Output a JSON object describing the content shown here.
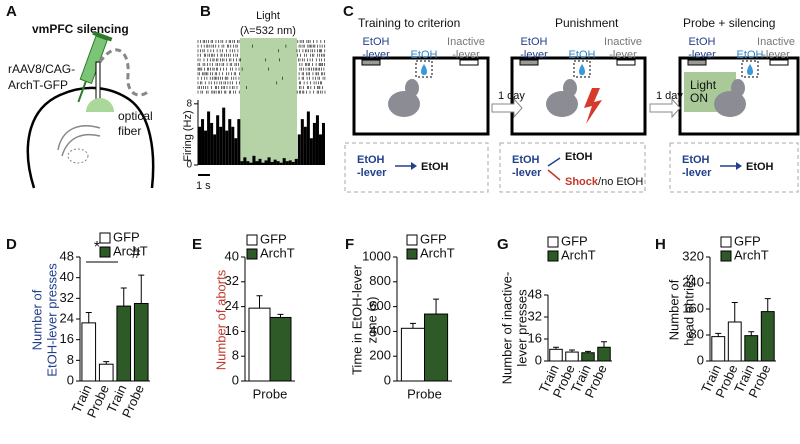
{
  "panel_a": {
    "label": "A",
    "title": "vmPFC silencing",
    "virus": [
      "rAAV8/CAG-",
      "ArchT-GFP"
    ],
    "fiber": [
      "optical",
      "fiber"
    ]
  },
  "panel_c": {
    "label": "C",
    "stages": [
      {
        "title": "Training to criterion",
        "active": [
          "EtOH",
          "-lever"
        ],
        "reward": "EtOH",
        "inactive": [
          "Inactive",
          "-lever"
        ],
        "outcome": {
          "lever": [
            "EtOH",
            "-lever"
          ],
          "result": [
            "EtOH"
          ]
        }
      },
      {
        "title": "Punishment",
        "active": [
          "EtOH",
          "-lever"
        ],
        "reward": "EtOH",
        "inactive": [
          "Inactive",
          "-lever"
        ],
        "outcome": {
          "lever": [
            "EtOH",
            "-lever"
          ],
          "result": [
            "EtOH",
            "Shock",
            "/no EtOH"
          ]
        }
      },
      {
        "title": "Probe + silencing",
        "active": [
          "EtOH",
          "-lever"
        ],
        "reward": "EtOH",
        "inactive": [
          "Inactive",
          "-lever"
        ],
        "outcome": {
          "lever": [
            "EtOH",
            "-lever"
          ],
          "result": [
            "EtOH"
          ]
        }
      }
    ],
    "transitions": [
      "1 day",
      "1 day"
    ],
    "light": [
      "Light",
      "ON"
    ]
  },
  "chart_data": [
    {
      "type": "bar",
      "panel_label": "B",
      "light_label": [
        "Light",
        "(λ=532 nm)"
      ],
      "ylabel": [
        "Firing (Hz)"
      ],
      "scale_bar": "1 s",
      "values": [
        5,
        6,
        4.5,
        7,
        5.5,
        4,
        6.5,
        5,
        7.5,
        4.5,
        6,
        5,
        3.5,
        6,
        0.5,
        1,
        0.5,
        0.3,
        1.2,
        0.5,
        0.8,
        0.3,
        0.6,
        1,
        0.4,
        0.7,
        0.5,
        0.3,
        0.9,
        0.5,
        0.6,
        0.4,
        0.8,
        4,
        6,
        5,
        7,
        3.5,
        5.5,
        6.5,
        4,
        5.5
      ],
      "color": "#000000",
      "ylim": [
        0,
        8.5
      ],
      "yticks": [
        0,
        8
      ]
    },
    {
      "type": "bar",
      "panel_label": "D",
      "ylabel": [
        "Number of",
        "EtOH-lever presses"
      ],
      "ylabel_color": "#23408e",
      "categories": [
        "Train",
        "Probe",
        "Train",
        "Probe"
      ],
      "series": [
        {
          "name": "GFP",
          "color": "#ffffff",
          "values": [
            22.5,
            6.5,
            null,
            null
          ],
          "errors": [
            4,
            1,
            null,
            null
          ]
        },
        {
          "name": "ArchT",
          "color": "#2d5a27",
          "values": [
            null,
            null,
            29,
            30
          ],
          "errors": [
            null,
            null,
            7,
            11
          ]
        }
      ],
      "ylim": [
        0,
        48
      ],
      "yticks": [
        0,
        8,
        16,
        24,
        32,
        40,
        48
      ],
      "annotations": [
        "*",
        "#"
      ]
    },
    {
      "type": "bar",
      "panel_label": "E",
      "ylabel": [
        "Number of aborts"
      ],
      "ylabel_color": "#c0392b",
      "categories": [
        "Probe"
      ],
      "series": [
        {
          "name": "GFP",
          "color": "#ffffff",
          "values": [
            23.5
          ],
          "errors": [
            4
          ]
        },
        {
          "name": "ArchT",
          "color": "#2d5a27",
          "values": [
            20.5
          ],
          "errors": [
            1
          ]
        }
      ],
      "ylim": [
        0,
        40
      ],
      "yticks": [
        0,
        8,
        16,
        24,
        32,
        40
      ]
    },
    {
      "type": "bar",
      "panel_label": "F",
      "ylabel": [
        "Time in EtOH-lever",
        "zone (s)"
      ],
      "categories": [
        "Probe"
      ],
      "series": [
        {
          "name": "GFP",
          "color": "#ffffff",
          "values": [
            425
          ],
          "errors": [
            40
          ]
        },
        {
          "name": "ArchT",
          "color": "#2d5a27",
          "values": [
            540
          ],
          "errors": [
            120
          ]
        }
      ],
      "ylim": [
        0,
        1000
      ],
      "yticks": [
        0,
        200,
        400,
        600,
        800,
        1000
      ]
    },
    {
      "type": "bar",
      "panel_label": "G",
      "ylabel": [
        "Number of inactive-",
        "lever presses"
      ],
      "categories": [
        "Train",
        "Probe",
        "Train",
        "Probe"
      ],
      "series": [
        {
          "name": "GFP",
          "color": "#ffffff",
          "values": [
            8.5,
            6.5,
            null,
            null
          ],
          "errors": [
            1.5,
            1.5,
            null,
            null
          ]
        },
        {
          "name": "ArchT",
          "color": "#2d5a27",
          "values": [
            null,
            null,
            6,
            10
          ],
          "errors": [
            null,
            null,
            1,
            4
          ]
        }
      ],
      "ylim": [
        0,
        48
      ],
      "yticks": [
        0,
        16,
        32,
        48
      ]
    },
    {
      "type": "bar",
      "panel_label": "H",
      "ylabel": [
        "Number of",
        "head entries"
      ],
      "categories": [
        "Train",
        "Probe",
        "Train",
        "Probe"
      ],
      "series": [
        {
          "name": "GFP",
          "color": "#ffffff",
          "values": [
            75,
            120,
            null,
            null
          ],
          "errors": [
            10,
            60,
            null,
            null
          ]
        },
        {
          "name": "ArchT",
          "color": "#2d5a27",
          "values": [
            null,
            null,
            78,
            152
          ],
          "errors": [
            null,
            null,
            12,
            40
          ]
        }
      ],
      "ylim": [
        0,
        320
      ],
      "yticks": [
        0,
        80,
        160,
        240,
        320
      ]
    }
  ]
}
